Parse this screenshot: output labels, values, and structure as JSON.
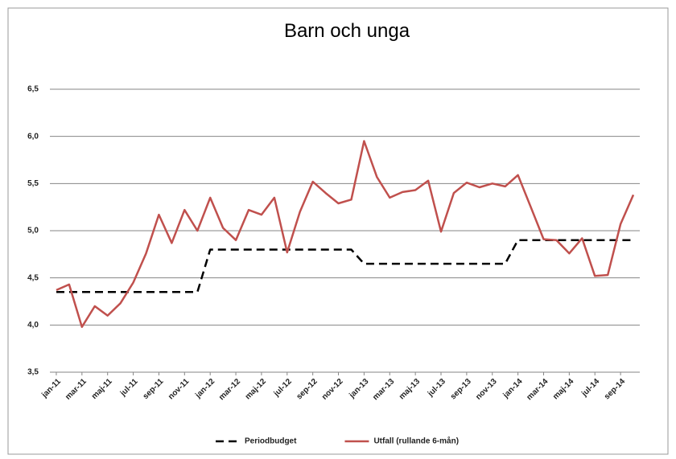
{
  "chart_data": {
    "type": "line",
    "title": "Barn och unga",
    "categories": [
      "jan-11",
      null,
      "mar-11",
      null,
      "maj-11",
      null,
      "jul-11",
      null,
      "sep-11",
      null,
      "nov-11",
      null,
      "jan-12",
      null,
      "mar-12",
      null,
      "maj-12",
      null,
      "jul-12",
      null,
      "sep-12",
      null,
      "nov-12",
      null,
      "jan-13",
      null,
      "mar-13",
      null,
      "maj-13",
      null,
      "jul-13",
      null,
      "sep-13",
      null,
      "nov-13",
      null,
      "jan-14",
      null,
      "mar-14",
      null,
      "maj-14",
      null,
      "jul-14",
      null,
      "sep-14",
      null
    ],
    "series": [
      {
        "name": "Periodbudget",
        "color": "#000000",
        "dashed": true,
        "values": [
          4.35,
          4.35,
          4.35,
          4.35,
          4.35,
          4.35,
          4.35,
          4.35,
          4.35,
          4.35,
          4.35,
          4.35,
          4.8,
          4.8,
          4.8,
          4.8,
          4.8,
          4.8,
          4.8,
          4.8,
          4.8,
          4.8,
          4.8,
          4.8,
          4.65,
          4.65,
          4.65,
          4.65,
          4.65,
          4.65,
          4.65,
          4.65,
          4.65,
          4.65,
          4.65,
          4.65,
          4.9,
          4.9,
          4.9,
          4.9,
          4.9,
          4.9,
          4.9,
          4.9,
          4.9,
          4.9
        ]
      },
      {
        "name": "Utfall (rullande 6-mån)",
        "color": "#c0504d",
        "dashed": false,
        "values": [
          4.37,
          4.43,
          3.98,
          4.2,
          4.1,
          4.23,
          4.45,
          4.76,
          5.17,
          4.87,
          5.22,
          5.0,
          5.35,
          5.03,
          4.9,
          5.22,
          5.17,
          5.35,
          4.77,
          5.2,
          5.52,
          5.4,
          5.29,
          5.33,
          5.95,
          5.57,
          5.35,
          5.41,
          5.43,
          5.53,
          4.99,
          5.4,
          5.51,
          5.46,
          5.5,
          5.47,
          5.59,
          5.25,
          4.91,
          4.9,
          4.76,
          4.92,
          4.52,
          4.53,
          5.07,
          5.38
        ]
      }
    ],
    "ylim": [
      3.5,
      6.5
    ],
    "yticks": [
      {
        "value": 3.5,
        "label": "3,5"
      },
      {
        "value": 4,
        "label": "4,0"
      },
      {
        "value": 4.5,
        "label": "4,5"
      },
      {
        "value": 5,
        "label": "5,0"
      },
      {
        "value": 5.5,
        "label": "5,5"
      },
      {
        "value": 6,
        "label": "6,0"
      },
      {
        "value": 6.5,
        "label": "6,5"
      }
    ],
    "grid": true,
    "legend": "bottom"
  }
}
